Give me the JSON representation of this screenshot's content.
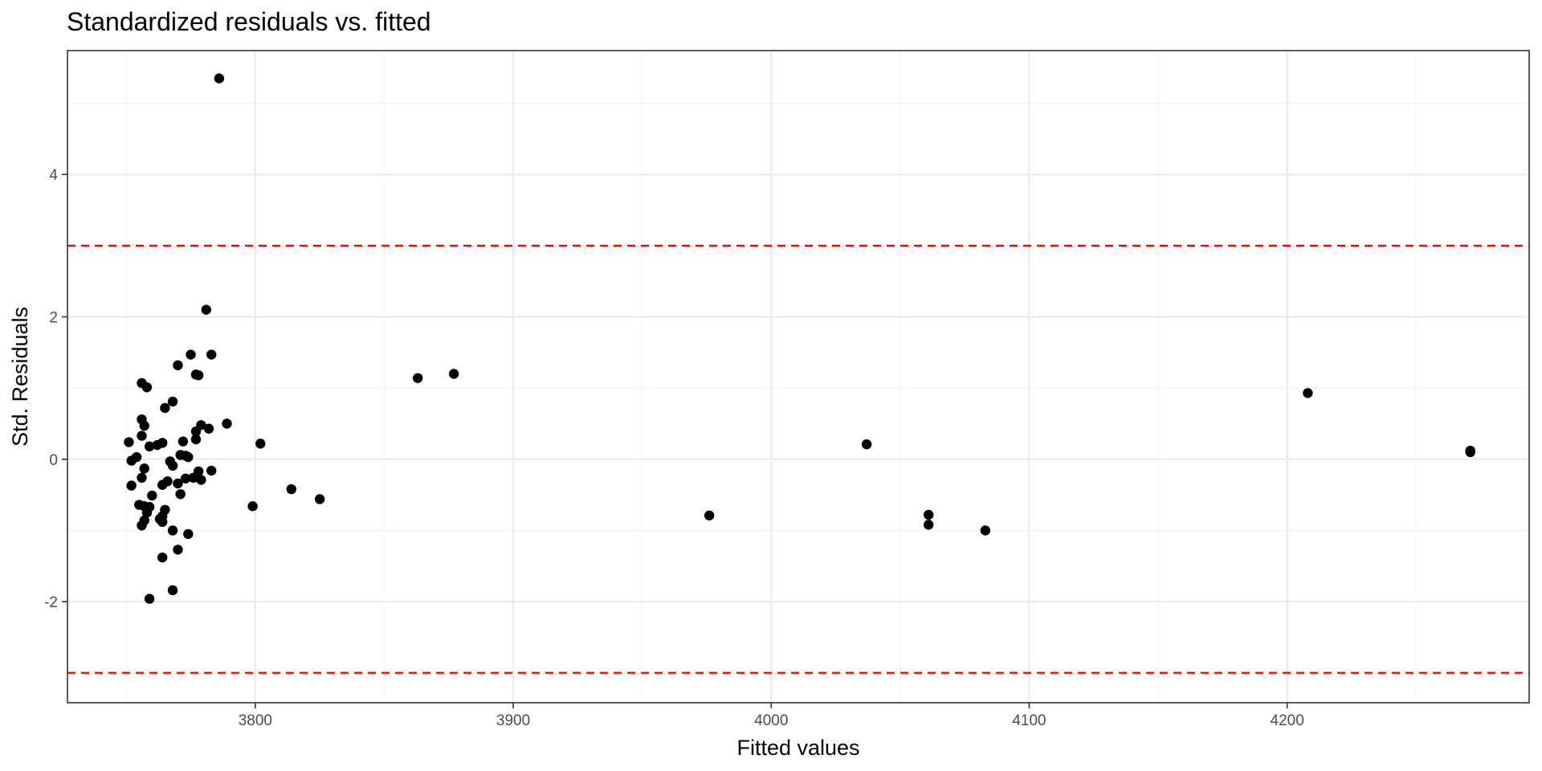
{
  "chart_data": {
    "type": "scatter",
    "title": "Standardized residuals vs. fitted",
    "xlabel": "Fitted values",
    "ylabel": "Std. Residuals",
    "xlim": [
      3727.2,
      4293.8
    ],
    "ylim": [
      -3.42,
      5.74
    ],
    "x_ticks": [
      3800,
      3900,
      4000,
      4100,
      4200
    ],
    "x_tick_labels": [
      "3800",
      "3900",
      "4000",
      "4100",
      "4200"
    ],
    "x_minor_ticks": [
      3750,
      3850,
      3950,
      4050,
      4150,
      4250
    ],
    "y_ticks": [
      -2,
      0,
      2,
      4
    ],
    "y_tick_labels": [
      "-2",
      "0",
      "2",
      "4"
    ],
    "y_minor_ticks": [
      -3,
      -1,
      1,
      3,
      5
    ],
    "grid": true,
    "reference_lines": [
      {
        "y": 3,
        "color": "#ff0000",
        "style": "dashed"
      },
      {
        "y": -3,
        "color": "#ff0000",
        "style": "dashed"
      }
    ],
    "point_color": "#000000",
    "points": [
      {
        "x": 3786,
        "y": 5.35
      },
      {
        "x": 3781,
        "y": 2.1
      },
      {
        "x": 3775,
        "y": 1.47
      },
      {
        "x": 3783,
        "y": 1.47
      },
      {
        "x": 3770,
        "y": 1.32
      },
      {
        "x": 3777,
        "y": 1.19
      },
      {
        "x": 3778,
        "y": 1.18
      },
      {
        "x": 3756,
        "y": 1.07
      },
      {
        "x": 3758,
        "y": 1.01
      },
      {
        "x": 3768,
        "y": 0.81
      },
      {
        "x": 3765,
        "y": 0.72
      },
      {
        "x": 3756,
        "y": 0.56
      },
      {
        "x": 3789,
        "y": 0.5
      },
      {
        "x": 3779,
        "y": 0.48
      },
      {
        "x": 3757,
        "y": 0.47
      },
      {
        "x": 3782,
        "y": 0.43
      },
      {
        "x": 3777,
        "y": 0.39
      },
      {
        "x": 3756,
        "y": 0.33
      },
      {
        "x": 3777,
        "y": 0.28
      },
      {
        "x": 3772,
        "y": 0.25
      },
      {
        "x": 3751,
        "y": 0.24
      },
      {
        "x": 3764,
        "y": 0.23
      },
      {
        "x": 3762,
        "y": 0.2
      },
      {
        "x": 3759,
        "y": 0.18
      },
      {
        "x": 3773,
        "y": 0.05
      },
      {
        "x": 3771,
        "y": 0.06
      },
      {
        "x": 3754,
        "y": 0.03
      },
      {
        "x": 3774,
        "y": 0.03
      },
      {
        "x": 3752,
        "y": -0.02
      },
      {
        "x": 3767,
        "y": -0.03
      },
      {
        "x": 3768,
        "y": -0.09
      },
      {
        "x": 3757,
        "y": -0.13
      },
      {
        "x": 3783,
        "y": -0.16
      },
      {
        "x": 3778,
        "y": -0.17
      },
      {
        "x": 3773,
        "y": -0.27
      },
      {
        "x": 3756,
        "y": -0.26
      },
      {
        "x": 3776,
        "y": -0.26
      },
      {
        "x": 3779,
        "y": -0.29
      },
      {
        "x": 3766,
        "y": -0.31
      },
      {
        "x": 3770,
        "y": -0.34
      },
      {
        "x": 3764,
        "y": -0.36
      },
      {
        "x": 3752,
        "y": -0.37
      },
      {
        "x": 3760,
        "y": -0.51
      },
      {
        "x": 3771,
        "y": -0.49
      },
      {
        "x": 3755,
        "y": -0.64
      },
      {
        "x": 3757,
        "y": -0.66
      },
      {
        "x": 3759,
        "y": -0.67
      },
      {
        "x": 3765,
        "y": -0.71
      },
      {
        "x": 3758,
        "y": -0.75
      },
      {
        "x": 3764,
        "y": -0.8
      },
      {
        "x": 3763,
        "y": -0.84
      },
      {
        "x": 3757,
        "y": -0.86
      },
      {
        "x": 3764,
        "y": -0.88
      },
      {
        "x": 3756,
        "y": -0.93
      },
      {
        "x": 3768,
        "y": -1.0
      },
      {
        "x": 3774,
        "y": -1.05
      },
      {
        "x": 3770,
        "y": -1.27
      },
      {
        "x": 3764,
        "y": -1.38
      },
      {
        "x": 3768,
        "y": -1.84
      },
      {
        "x": 3759,
        "y": -1.96
      },
      {
        "x": 3799,
        "y": -0.66
      },
      {
        "x": 3802,
        "y": 0.22
      },
      {
        "x": 3814,
        "y": -0.42
      },
      {
        "x": 3825,
        "y": -0.56
      },
      {
        "x": 3863,
        "y": 1.14
      },
      {
        "x": 3877,
        "y": 1.2
      },
      {
        "x": 3976,
        "y": -0.79
      },
      {
        "x": 4037,
        "y": 0.21
      },
      {
        "x": 4061,
        "y": -0.78
      },
      {
        "x": 4061,
        "y": -0.92
      },
      {
        "x": 4083,
        "y": -1.0
      },
      {
        "x": 4208,
        "y": 0.93
      },
      {
        "x": 4271,
        "y": 0.1
      },
      {
        "x": 4271,
        "y": 0.12
      }
    ]
  }
}
